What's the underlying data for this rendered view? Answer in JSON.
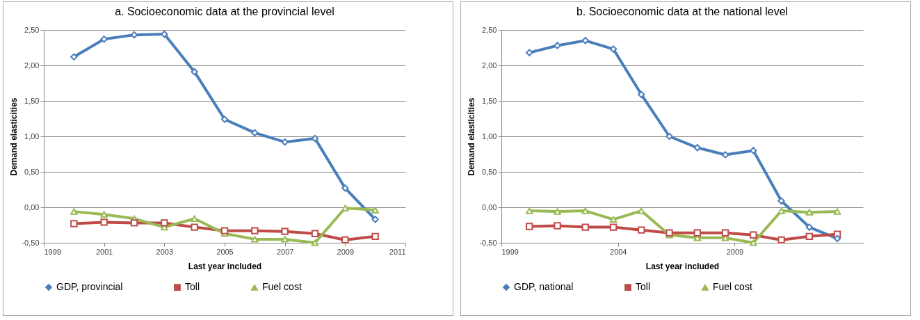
{
  "chart_data": [
    {
      "type": "line",
      "title": "a. Socioeconomic data at the provincial level",
      "xlabel": "Last year included",
      "ylabel": "Demand elasticities",
      "x": [
        2000,
        2001,
        2002,
        2003,
        2004,
        2005,
        2006,
        2007,
        2008,
        2009,
        2010
      ],
      "series": [
        {
          "name": "GDP, provincial",
          "color": "#4a7ebb",
          "marker": "diamond",
          "values": [
            2.12,
            2.37,
            2.43,
            2.44,
            1.91,
            1.24,
            1.05,
            0.92,
            0.97,
            0.27,
            -0.17
          ]
        },
        {
          "name": "Toll",
          "color": "#be4b48",
          "marker": "square",
          "values": [
            -0.23,
            -0.21,
            -0.22,
            -0.22,
            -0.28,
            -0.33,
            -0.33,
            -0.34,
            -0.37,
            -0.46,
            -0.41
          ]
        },
        {
          "name": "Fuel cost",
          "color": "#98b954",
          "marker": "triangle",
          "values": [
            -0.06,
            -0.1,
            -0.16,
            -0.28,
            -0.16,
            -0.37,
            -0.45,
            -0.45,
            -0.5,
            -0.01,
            -0.04
          ]
        }
      ],
      "xlim": [
        1999,
        2011
      ],
      "xticks": [
        1999,
        2001,
        2003,
        2005,
        2007,
        2009,
        2011
      ],
      "ylim": [
        -0.5,
        2.5
      ],
      "yticks": [
        {
          "value": -0.5,
          "label": "-0,50"
        },
        {
          "value": 0,
          "label": "0,00"
        },
        {
          "value": 0.5,
          "label": "0,50"
        },
        {
          "value": 1,
          "label": "1,00"
        },
        {
          "value": 1.5,
          "label": "1,50"
        },
        {
          "value": 2,
          "label": "2,00"
        },
        {
          "value": 2.5,
          "label": "2,50"
        }
      ],
      "grid": "y",
      "legend": "bottom"
    },
    {
      "type": "line",
      "title": "b. Socioeconomic data at the national level",
      "xlabel": "Last year included",
      "ylabel": "Demand elasticities",
      "x": [
        2000.2,
        2001.4,
        2002.6,
        2003.8,
        2005.0,
        2006.2,
        2007.4,
        2008.6,
        2009.8,
        2011.0,
        2012.2,
        2013.4
      ],
      "series": [
        {
          "name": "GDP, national",
          "color": "#4a7ebb",
          "marker": "diamond",
          "values": [
            2.18,
            2.28,
            2.35,
            2.23,
            1.59,
            1.0,
            0.84,
            0.74,
            0.8,
            0.09,
            -0.28,
            -0.44
          ]
        },
        {
          "name": "Toll",
          "color": "#be4b48",
          "marker": "square",
          "values": [
            -0.27,
            -0.26,
            -0.28,
            -0.28,
            -0.32,
            -0.36,
            -0.36,
            -0.36,
            -0.39,
            -0.46,
            -0.41,
            -0.38
          ]
        },
        {
          "name": "Fuel cost",
          "color": "#98b954",
          "marker": "triangle",
          "values": [
            -0.05,
            -0.06,
            -0.05,
            -0.17,
            -0.05,
            -0.39,
            -0.43,
            -0.43,
            -0.5,
            -0.05,
            -0.07,
            -0.06
          ]
        }
      ],
      "xlim": [
        1999,
        2014.5
      ],
      "xticks": [
        1999,
        2004,
        2009
      ],
      "ylim": [
        -0.5,
        2.5
      ],
      "yticks": [
        {
          "value": -0.5,
          "label": "-0,50"
        },
        {
          "value": 0,
          "label": "0,00"
        },
        {
          "value": 0.5,
          "label": "0,50"
        },
        {
          "value": 1,
          "label": "1,00"
        },
        {
          "value": 1.5,
          "label": "1,50"
        },
        {
          "value": 2,
          "label": "2,00"
        },
        {
          "value": 2.5,
          "label": "2,50"
        }
      ],
      "grid": "y",
      "legend": "bottom"
    }
  ]
}
